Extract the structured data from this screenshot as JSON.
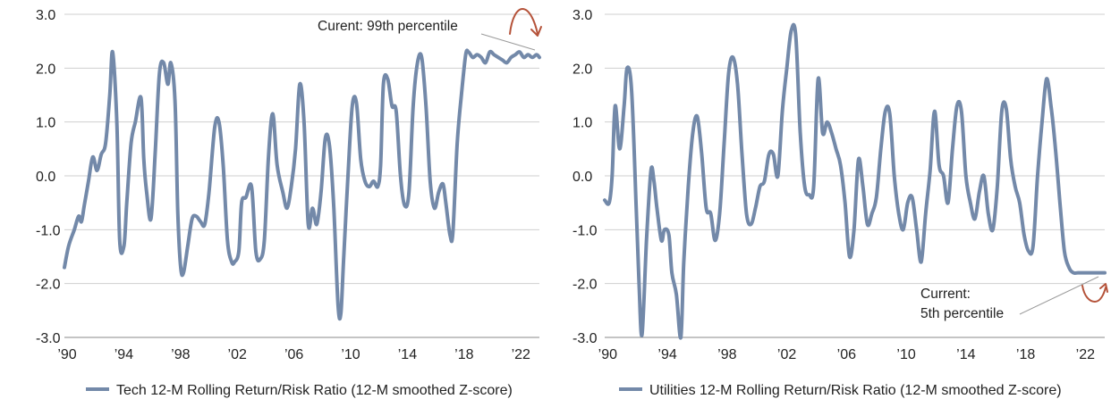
{
  "chart_data": [
    {
      "type": "line",
      "title": "",
      "xlabel": "",
      "ylabel": "",
      "ylim": [
        -3.0,
        3.0
      ],
      "xlim": [
        1989.6,
        2023.1
      ],
      "yticks": [
        "3.0",
        "2.0",
        "1.0",
        "0.0",
        "-1.0",
        "-2.0",
        "-3.0"
      ],
      "xticks": [
        "’90",
        "’94",
        "’98",
        "’02",
        "’06",
        "’10",
        "’14",
        "’18",
        "’22"
      ],
      "grid": true,
      "legend_position": "bottom",
      "series": [
        {
          "name": "Tech 12-M Rolling Return/Risk Ratio (12-M smoothed Z-score)",
          "color": "#7389a9",
          "x": [
            1989.6,
            1989.9,
            1990.3,
            1990.6,
            1990.8,
            1991.0,
            1991.3,
            1991.6,
            1991.9,
            1992.2,
            1992.5,
            1992.8,
            1993.0,
            1993.3,
            1993.5,
            1993.8,
            1994.0,
            1994.3,
            1994.6,
            1995.0,
            1995.2,
            1995.4,
            1995.7,
            1996.0,
            1996.3,
            1996.6,
            1996.9,
            1997.1,
            1997.4,
            1997.6,
            1997.8,
            1998.0,
            1998.3,
            1998.6,
            1998.9,
            1999.2,
            1999.5,
            1999.8,
            2000.2,
            2000.5,
            2000.8,
            2001.1,
            2001.4,
            2001.6,
            2001.9,
            2002.1,
            2002.4,
            2002.8,
            2003.1,
            2003.4,
            2003.7,
            2004.0,
            2004.3,
            2004.6,
            2005.0,
            2005.3,
            2005.6,
            2005.9,
            2006.2,
            2006.5,
            2006.8,
            2007.1,
            2007.4,
            2007.7,
            2008.0,
            2008.3,
            2008.6,
            2008.9,
            2009.1,
            2009.3,
            2009.6,
            2009.9,
            2010.2,
            2010.5,
            2010.8,
            2011.1,
            2011.4,
            2011.7,
            2011.9,
            2012.1,
            2012.4,
            2012.7,
            2013.0,
            2013.3,
            2013.6,
            2013.9,
            2014.2,
            2014.5,
            2014.8,
            2015.1,
            2015.4,
            2015.7,
            2016.0,
            2016.3,
            2016.5,
            2016.8,
            2017.0,
            2017.3,
            2017.6,
            2017.9,
            2018.1,
            2018.4,
            2018.7,
            2019.0,
            2019.3,
            2019.6,
            2019.9,
            2020.2,
            2020.5,
            2020.8,
            2021.1,
            2021.4,
            2021.7,
            2022.0,
            2022.3,
            2022.6,
            2022.9,
            2023.1
          ],
          "values": [
            -1.7,
            -1.3,
            -1.0,
            -0.75,
            -0.85,
            -0.55,
            -0.1,
            0.35,
            0.1,
            0.4,
            0.6,
            1.5,
            2.3,
            1.0,
            -1.2,
            -1.3,
            -0.5,
            0.6,
            1.0,
            1.45,
            0.3,
            -0.3,
            -0.8,
            0.4,
            1.9,
            2.1,
            1.7,
            2.1,
            1.4,
            -0.7,
            -1.7,
            -1.8,
            -1.3,
            -0.8,
            -0.75,
            -0.85,
            -0.9,
            -0.3,
            0.9,
            1.0,
            0.2,
            -1.2,
            -1.6,
            -1.6,
            -1.4,
            -0.5,
            -0.4,
            -0.2,
            -1.4,
            -1.55,
            -1.2,
            0.4,
            1.15,
            0.2,
            -0.3,
            -0.6,
            -0.2,
            0.5,
            1.7,
            1.0,
            -0.9,
            -0.6,
            -0.9,
            -0.3,
            0.7,
            0.55,
            -0.6,
            -2.4,
            -2.55,
            -1.5,
            0.0,
            1.3,
            1.35,
            0.3,
            -0.1,
            -0.2,
            -0.1,
            -0.2,
            0.2,
            1.7,
            1.8,
            1.3,
            1.2,
            0.0,
            -0.55,
            -0.3,
            1.3,
            2.1,
            2.2,
            1.3,
            -0.1,
            -0.6,
            -0.3,
            -0.15,
            -0.5,
            -1.1,
            -1.05,
            0.6,
            1.5,
            2.25,
            2.3,
            2.2,
            2.25,
            2.2,
            2.1,
            2.3,
            2.25,
            2.2,
            2.15,
            2.1,
            2.2,
            2.25,
            2.3,
            2.2,
            2.25,
            2.2,
            2.25,
            2.2
          ]
        },
        {
          "name": "Utilities 12-M Rolling Return/Risk Ratio (12-M smoothed Z-score)",
          "color": "#7389a9",
          "x": [
            1989.6,
            1989.9,
            1990.1,
            1990.3,
            1990.6,
            1990.9,
            1991.1,
            1991.4,
            1991.7,
            1991.9,
            1992.1,
            1992.4,
            1992.7,
            1992.9,
            1993.1,
            1993.4,
            1993.6,
            1993.9,
            1994.1,
            1994.4,
            1994.7,
            1994.9,
            1995.2,
            1995.5,
            1995.8,
            1996.1,
            1996.4,
            1996.7,
            1997.0,
            1997.3,
            1997.6,
            1997.9,
            1998.2,
            1998.5,
            1998.8,
            1999.1,
            1999.4,
            1999.7,
            2000.0,
            2000.3,
            2000.6,
            2000.9,
            2001.2,
            2001.5,
            2001.8,
            2002.1,
            2002.4,
            2002.7,
            2003.0,
            2003.3,
            2003.6,
            2003.9,
            2004.2,
            2004.5,
            2004.8,
            2005.1,
            2005.4,
            2005.7,
            2006.0,
            2006.3,
            2006.6,
            2006.9,
            2007.2,
            2007.5,
            2007.8,
            2008.1,
            2008.4,
            2008.7,
            2009.0,
            2009.3,
            2009.6,
            2009.9,
            2010.2,
            2010.5,
            2010.8,
            2011.1,
            2011.4,
            2011.7,
            2012.0,
            2012.3,
            2012.6,
            2012.9,
            2013.2,
            2013.5,
            2013.8,
            2014.1,
            2014.4,
            2014.7,
            2015.0,
            2015.3,
            2015.6,
            2015.9,
            2016.2,
            2016.5,
            2016.8,
            2017.1,
            2017.4,
            2017.7,
            2018.0,
            2018.3,
            2018.6,
            2018.9,
            2019.2,
            2019.5,
            2019.8,
            2020.1,
            2020.4,
            2020.7,
            2021.0,
            2021.3,
            2021.6,
            2021.9,
            2022.2,
            2022.5,
            2022.8,
            2023.1
          ],
          "values": [
            -0.45,
            -0.5,
            0.0,
            1.3,
            0.5,
            1.3,
            2.0,
            1.6,
            -0.5,
            -2.0,
            -2.95,
            -1.2,
            0.1,
            -0.1,
            -0.6,
            -1.2,
            -1.0,
            -1.1,
            -1.8,
            -2.2,
            -3.0,
            -1.6,
            -0.2,
            0.8,
            1.1,
            0.4,
            -0.6,
            -0.7,
            -1.2,
            -0.7,
            0.6,
            1.9,
            2.2,
            1.7,
            0.4,
            -0.7,
            -0.9,
            -0.6,
            -0.2,
            -0.1,
            0.4,
            0.4,
            0.0,
            1.2,
            2.0,
            2.7,
            2.6,
            0.8,
            -0.2,
            -0.35,
            -0.2,
            1.8,
            0.8,
            1.0,
            0.8,
            0.5,
            0.2,
            -0.5,
            -1.5,
            -1.0,
            0.3,
            -0.2,
            -0.9,
            -0.7,
            -0.4,
            0.5,
            1.2,
            1.15,
            0.0,
            -0.7,
            -1.0,
            -0.5,
            -0.4,
            -1.0,
            -1.6,
            -0.7,
            0.1,
            1.2,
            0.2,
            0.0,
            -0.5,
            0.5,
            1.3,
            1.2,
            0.0,
            -0.5,
            -0.8,
            -0.3,
            0.0,
            -0.7,
            -1.0,
            -0.2,
            1.2,
            1.25,
            0.3,
            -0.2,
            -0.5,
            -1.1,
            -1.4,
            -1.3,
            0.0,
            1.0,
            1.8,
            1.3,
            0.5,
            -0.5,
            -1.4,
            -1.7,
            -1.8,
            -1.8,
            -1.8,
            -1.8,
            -1.8,
            -1.8,
            -1.8,
            -1.8
          ]
        }
      ],
      "annotations": [
        {
          "lines": [
            "Curent: 99th percentile"
          ],
          "arrow_color": "#b5533a"
        },
        {
          "lines": [
            "Current:",
            "5th percentile"
          ],
          "arrow_color": "#b5533a"
        }
      ]
    }
  ]
}
